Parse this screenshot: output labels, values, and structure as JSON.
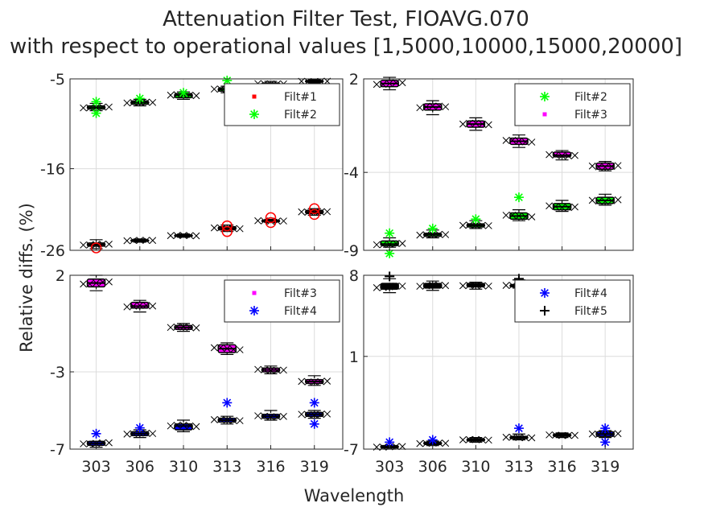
{
  "figure": {
    "title_line1": "Attenuation Filter Test, FIOAVG.070",
    "title_line2": "with respect to operational values [1,5000,10000,15000,20000]",
    "xlabel": "Wavelength",
    "ylabel": "Relative diffs. (%)"
  },
  "colors": {
    "Filt#1": "#ff0000",
    "Filt#2": "#00ff00",
    "Filt#3": "#ff00ff",
    "Filt#4": "#0000ff",
    "Filt#5": "#000000",
    "grid": "#dcdcdc",
    "axis": "#262626"
  },
  "chart_data": [
    {
      "type": "box",
      "panel": "top-left",
      "categories": [
        "303",
        "306",
        "310",
        "313",
        "316",
        "319"
      ],
      "ylim": [
        -26,
        -5
      ],
      "yticks": [
        "-5",
        "-16",
        "-26"
      ],
      "xticks_shown": false,
      "legend": [
        "Filt#1",
        "Filt#2"
      ],
      "legend_placement": "top-right",
      "grid": true,
      "series": [
        {
          "name": "Filt#1",
          "marker": "dot",
          "median": [
            -25.3,
            -24.8,
            -24.2,
            -23.3,
            -22.4,
            -21.3
          ],
          "q1": [
            -25.5,
            -24.9,
            -24.3,
            -23.5,
            -22.5,
            -21.5
          ],
          "q3": [
            -25.1,
            -24.7,
            -24.1,
            -23.1,
            -22.3,
            -21.1
          ],
          "wlo": [
            -25.8,
            -25.0,
            -24.4,
            -23.7,
            -22.6,
            -21.7
          ],
          "whi": [
            -24.7,
            -24.6,
            -24.0,
            -22.9,
            -22.2,
            -20.9
          ],
          "outliers": [
            [
              -25.7
            ],
            [],
            [],
            [
              -23.7,
              -23.0
            ],
            [
              -22.0,
              -22.6
            ],
            [
              -20.9,
              -21.6
            ]
          ]
        },
        {
          "name": "Filt#2",
          "marker": "asterisk",
          "median": [
            -8.5,
            -7.9,
            -7.0,
            -6.3,
            -5.6,
            -5.3
          ],
          "q1": [
            -8.7,
            -8.1,
            -7.3,
            -6.5,
            -5.7,
            -5.4
          ],
          "q3": [
            -8.3,
            -7.7,
            -6.8,
            -6.1,
            -5.5,
            -5.2
          ],
          "wlo": [
            -8.9,
            -8.3,
            -7.5,
            -6.7,
            -5.8,
            -5.5
          ],
          "whi": [
            -8.0,
            -7.5,
            -6.6,
            -5.9,
            -5.3,
            -5.1
          ],
          "outliers": [
            [
              -7.8,
              -9.2
            ],
            [
              -7.4
            ],
            [
              -6.7
            ],
            [
              -5.2
            ],
            [],
            []
          ]
        }
      ]
    },
    {
      "type": "box",
      "panel": "top-right",
      "categories": [
        "303",
        "306",
        "310",
        "313",
        "316",
        "319"
      ],
      "ylim": [
        -9,
        2
      ],
      "yticks": [
        "2",
        "-4",
        "-9"
      ],
      "xticks_shown": false,
      "legend": [
        "Filt#2",
        "Filt#3"
      ],
      "legend_placement": "top-right",
      "grid": true,
      "series": [
        {
          "name": "Filt#2",
          "marker": "asterisk",
          "median": [
            -8.6,
            -8.0,
            -7.4,
            -6.8,
            -6.2,
            -5.8
          ],
          "q1": [
            -8.7,
            -8.1,
            -7.5,
            -7.0,
            -6.4,
            -6.0
          ],
          "q3": [
            -8.4,
            -7.9,
            -7.3,
            -6.6,
            -6.0,
            -5.6
          ],
          "wlo": [
            -8.8,
            -8.2,
            -7.6,
            -7.1,
            -6.5,
            -6.1
          ],
          "whi": [
            -8.2,
            -7.7,
            -7.1,
            -6.4,
            -5.8,
            -5.4
          ],
          "outliers": [
            [
              -7.9,
              -9.2
            ],
            [
              -7.6
            ],
            [
              -7.0
            ],
            [
              -5.6
            ],
            [],
            []
          ]
        },
        {
          "name": "Filt#3",
          "marker": "dot",
          "median": [
            1.7,
            0.2,
            -0.9,
            -2.0,
            -2.9,
            -3.6
          ],
          "q1": [
            1.5,
            0.0,
            -1.1,
            -2.2,
            -3.0,
            -3.8
          ],
          "q3": [
            1.9,
            0.4,
            -0.7,
            -1.8,
            -2.7,
            -3.4
          ],
          "wlo": [
            1.3,
            -0.3,
            -1.3,
            -2.4,
            -3.2,
            -3.9
          ],
          "whi": [
            2.1,
            0.6,
            -0.5,
            -1.6,
            -2.6,
            -3.3
          ],
          "outliers": [
            [],
            [],
            [],
            [],
            [],
            []
          ]
        }
      ]
    },
    {
      "type": "box",
      "panel": "bottom-left",
      "categories": [
        "303",
        "306",
        "310",
        "313",
        "316",
        "319"
      ],
      "ylim": [
        -7,
        2
      ],
      "yticks": [
        "2",
        "-3",
        "-7"
      ],
      "xticks_shown": true,
      "legend": [
        "Filt#3",
        "Filt#4"
      ],
      "legend_placement": "top-right",
      "grid": true,
      "series": [
        {
          "name": "Filt#3",
          "marker": "dot",
          "median": [
            1.6,
            0.4,
            -0.7,
            -1.8,
            -2.9,
            -3.5
          ],
          "q1": [
            1.4,
            0.3,
            -0.8,
            -2.0,
            -3.0,
            -3.6
          ],
          "q3": [
            1.8,
            0.6,
            -0.6,
            -1.6,
            -2.8,
            -3.4
          ],
          "wlo": [
            1.2,
            0.1,
            -0.9,
            -2.1,
            -3.1,
            -3.7
          ],
          "whi": [
            2.0,
            0.7,
            -0.5,
            -1.5,
            -2.7,
            -3.2
          ],
          "outliers": [
            [],
            [],
            [],
            [],
            [],
            []
          ]
        },
        {
          "name": "Filt#4",
          "marker": "asterisk",
          "median": [
            -6.7,
            -6.2,
            -5.8,
            -5.5,
            -5.3,
            -5.2
          ],
          "q1": [
            -6.8,
            -6.3,
            -6.0,
            -5.6,
            -5.4,
            -5.3
          ],
          "q3": [
            -6.6,
            -6.1,
            -5.7,
            -5.4,
            -5.2,
            -5.1
          ],
          "wlo": [
            -6.9,
            -6.4,
            -6.1,
            -5.7,
            -5.5,
            -5.4
          ],
          "whi": [
            -6.6,
            -6.0,
            -5.5,
            -5.3,
            -5.0,
            -5.0
          ],
          "outliers": [
            [
              -6.2
            ],
            [
              -5.9
            ],
            [],
            [
              -4.6
            ],
            [],
            [
              -4.6,
              -5.7
            ]
          ]
        }
      ]
    },
    {
      "type": "box",
      "panel": "bottom-right",
      "categories": [
        "303",
        "306",
        "310",
        "313",
        "316",
        "319"
      ],
      "ylim": [
        -7,
        8
      ],
      "yticks": [
        "8",
        "1",
        "-7"
      ],
      "xticks_shown": true,
      "legend": [
        "Filt#4",
        "Filt#5"
      ],
      "legend_placement": "top-right",
      "grid": true,
      "series": [
        {
          "name": "Filt#4",
          "marker": "asterisk",
          "median": [
            -6.8,
            -6.5,
            -6.2,
            -6.0,
            -5.8,
            -5.7
          ],
          "q1": [
            -6.9,
            -6.6,
            -6.3,
            -6.1,
            -5.9,
            -5.9
          ],
          "q3": [
            -6.7,
            -6.4,
            -6.1,
            -5.9,
            -5.7,
            -5.5
          ],
          "wlo": [
            -7.0,
            -6.7,
            -6.4,
            -6.2,
            -6.0,
            -6.0
          ],
          "whi": [
            -6.7,
            -6.3,
            -6.0,
            -5.7,
            -5.6,
            -5.4
          ],
          "outliers": [
            [
              -6.4
            ],
            [
              -6.2
            ],
            [],
            [
              -5.2
            ],
            [],
            [
              -5.2,
              -6.4
            ]
          ]
        },
        {
          "name": "Filt#5",
          "marker": "plus",
          "median": [
            7.0,
            7.1,
            7.1,
            7.1,
            7.1,
            7.1
          ],
          "q1": [
            6.8,
            6.9,
            7.0,
            7.0,
            7.0,
            7.0
          ],
          "q3": [
            7.3,
            7.3,
            7.3,
            7.2,
            7.2,
            7.2
          ],
          "wlo": [
            6.5,
            6.7,
            6.8,
            6.9,
            6.9,
            7.0
          ],
          "whi": [
            7.7,
            7.5,
            7.4,
            7.6,
            7.4,
            7.3
          ],
          "outliers": [
            [
              7.9
            ],
            [],
            [],
            [
              7.7
            ],
            [],
            []
          ]
        }
      ]
    }
  ]
}
